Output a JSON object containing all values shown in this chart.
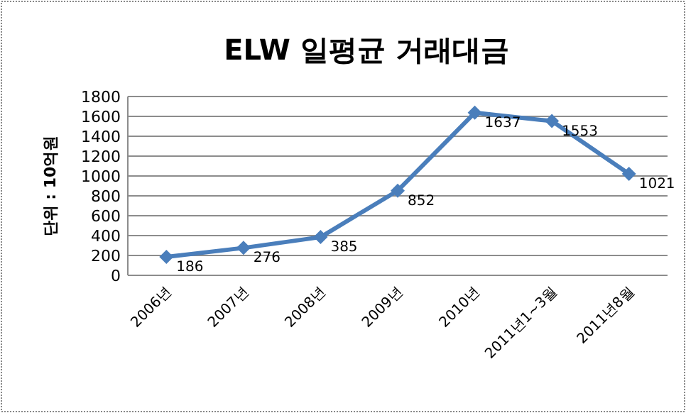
{
  "chart_data": {
    "type": "line",
    "title": "ELW 일평균 거래대금",
    "ylabel": "단위 : 10억원",
    "categories": [
      "2006년",
      "2007년",
      "2008년",
      "2009년",
      "2010년",
      "2011년1~3월",
      "2011년8월"
    ],
    "series": [
      {
        "color": "#4a7ebb",
        "values": [
          186,
          276,
          385,
          852,
          1637,
          1553,
          1021
        ]
      }
    ],
    "ylim": [
      0,
      1800
    ],
    "yticks": [
      0,
      200,
      400,
      600,
      800,
      1000,
      1200,
      1400,
      1600,
      1800
    ],
    "grid": "y",
    "marker": "diamond",
    "line_style": "solid",
    "data_labels": true
  }
}
